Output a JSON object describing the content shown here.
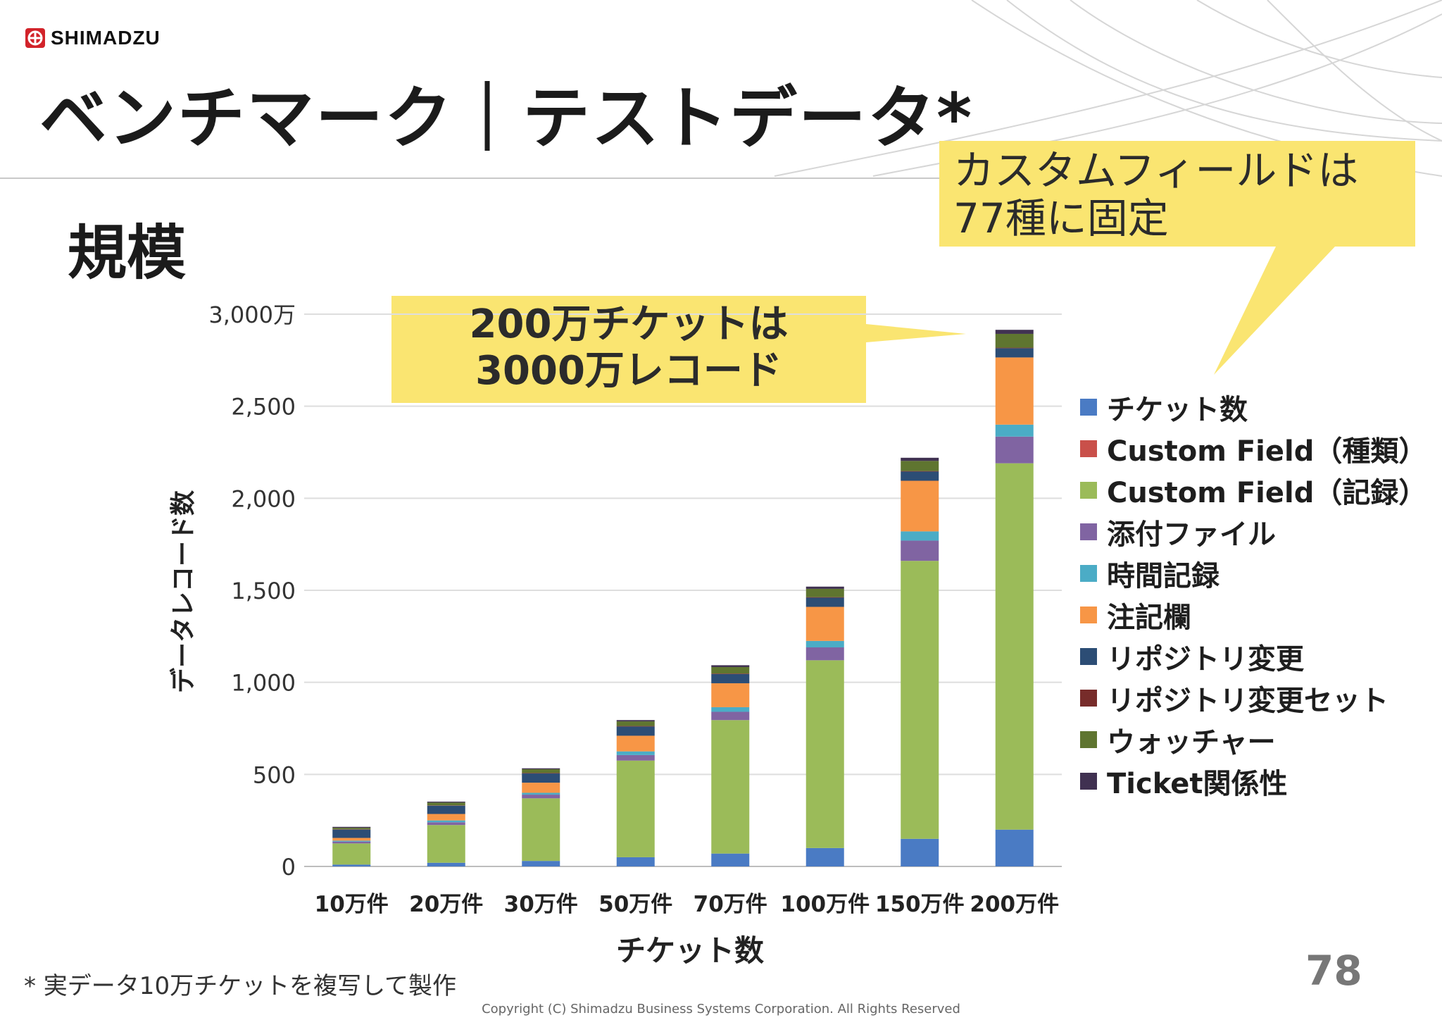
{
  "brand": {
    "name": "SHIMADZU",
    "color": "#d2232a"
  },
  "slide": {
    "title": "ベンチマーク｜テストデータ*",
    "subtitle": "規模",
    "footnote": "* 実データ10万チケットを複写して製作",
    "page_number": "78",
    "copyright": "Copyright (C) Shimadzu Business Systems Corporation. All Rights Reserved"
  },
  "callouts": [
    {
      "lines": [
        "200万チケットは",
        "3000万レコード"
      ],
      "color": "#fae571"
    },
    {
      "lines": [
        "カスタムフィールドは",
        "77種に固定"
      ],
      "color": "#fae571"
    }
  ],
  "chart_data": {
    "type": "bar",
    "stacked": true,
    "xlabel": "チケット数",
    "ylabel": "データレコード数",
    "ylim": [
      0,
      3000
    ],
    "yticks": [
      {
        "value": 3000,
        "label": "3,000万"
      },
      {
        "value": 2500,
        "label": "2,500"
      },
      {
        "value": 2000,
        "label": "2,000"
      },
      {
        "value": 1500,
        "label": "1,500"
      },
      {
        "value": 1000,
        "label": "1,000"
      },
      {
        "value": 500,
        "label": "500"
      },
      {
        "value": 0,
        "label": "0"
      }
    ],
    "grid": true,
    "legend_position": "right",
    "categories": [
      "10万件",
      "20万件",
      "30万件",
      "50万件",
      "70万件",
      "100万件",
      "150万件",
      "200万件"
    ],
    "series": [
      {
        "name": "チケット数",
        "color": "#4a7bc4",
        "values": [
          10,
          20,
          30,
          50,
          70,
          100,
          150,
          200
        ]
      },
      {
        "name": "Custom Field（種類）",
        "color": "#c9504a",
        "values": [
          0,
          0,
          0,
          0,
          0,
          0,
          0,
          0
        ]
      },
      {
        "name": "Custom Field（記録）",
        "color": "#9bbb59",
        "values": [
          115,
          205,
          340,
          525,
          725,
          1020,
          1510,
          1990
        ]
      },
      {
        "name": "添付ファイル",
        "color": "#8064a2",
        "values": [
          10,
          15,
          20,
          30,
          45,
          70,
          110,
          145
        ]
      },
      {
        "name": "時間記録",
        "color": "#4bacc6",
        "values": [
          5,
          10,
          10,
          20,
          25,
          35,
          50,
          65
        ]
      },
      {
        "name": "注記欄",
        "color": "#f79646",
        "values": [
          15,
          35,
          55,
          85,
          130,
          185,
          275,
          365
        ]
      },
      {
        "name": "リポジトリ変更",
        "color": "#2c4d75",
        "values": [
          45,
          45,
          50,
          50,
          50,
          50,
          50,
          50
        ]
      },
      {
        "name": "リポジトリ変更セット",
        "color": "#772c2a",
        "values": [
          2,
          2,
          3,
          3,
          3,
          3,
          3,
          3
        ]
      },
      {
        "name": "ウォッチャー",
        "color": "#5f7530",
        "values": [
          8,
          15,
          20,
          25,
          35,
          45,
          55,
          75
        ]
      },
      {
        "name": "Ticket関係性",
        "color": "#403151",
        "values": [
          5,
          5,
          5,
          7,
          10,
          12,
          17,
          22
        ]
      }
    ]
  }
}
